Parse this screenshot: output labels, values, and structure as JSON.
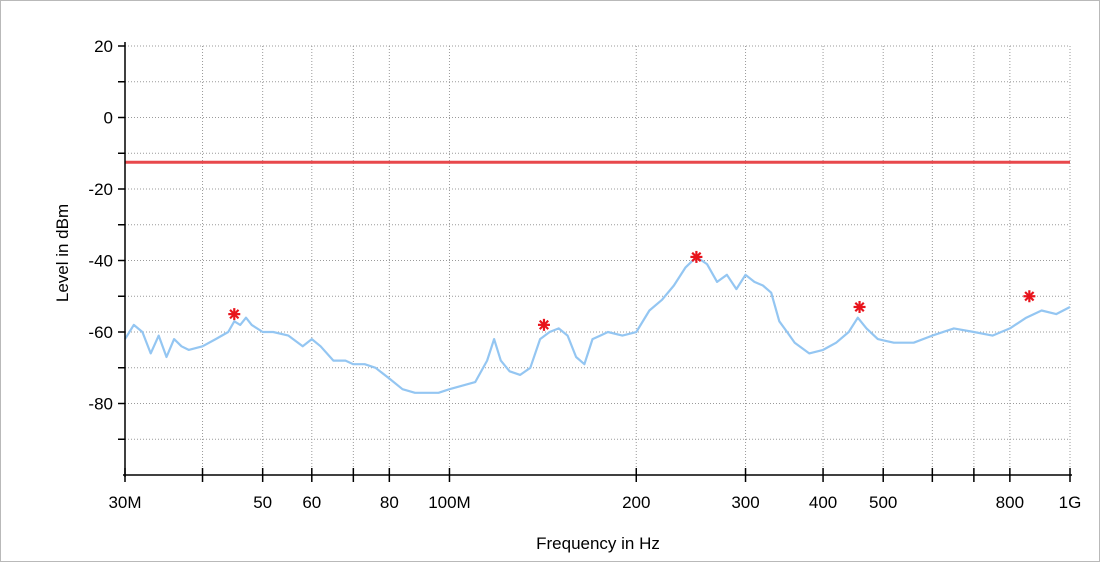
{
  "chart_data": {
    "type": "line",
    "xlabel": "Frequency in Hz",
    "ylabel": "Level in dBm",
    "x_scale": "log",
    "xlim": [
      30000000,
      1000000000
    ],
    "ylim": [
      -100,
      20
    ],
    "grid": true,
    "x_ticks": [
      {
        "value": 30000000,
        "label": "30M"
      },
      {
        "value": 40000000,
        "label": ""
      },
      {
        "value": 50000000,
        "label": "50"
      },
      {
        "value": 60000000,
        "label": "60"
      },
      {
        "value": 70000000,
        "label": ""
      },
      {
        "value": 80000000,
        "label": "80"
      },
      {
        "value": 100000000,
        "label": "100M"
      },
      {
        "value": 200000000,
        "label": "200"
      },
      {
        "value": 300000000,
        "label": "300"
      },
      {
        "value": 400000000,
        "label": "400"
      },
      {
        "value": 500000000,
        "label": "500"
      },
      {
        "value": 600000000,
        "label": ""
      },
      {
        "value": 700000000,
        "label": ""
      },
      {
        "value": 800000000,
        "label": "800"
      },
      {
        "value": 1000000000,
        "label": "1G"
      }
    ],
    "y_ticks": [
      {
        "value": 20,
        "label": "20"
      },
      {
        "value": 10,
        "label": ""
      },
      {
        "value": 0,
        "label": "0"
      },
      {
        "value": -10,
        "label": ""
      },
      {
        "value": -20,
        "label": "-20"
      },
      {
        "value": -30,
        "label": ""
      },
      {
        "value": -40,
        "label": "-40"
      },
      {
        "value": -50,
        "label": ""
      },
      {
        "value": -60,
        "label": "-60"
      },
      {
        "value": -70,
        "label": ""
      },
      {
        "value": -80,
        "label": "-80"
      },
      {
        "value": -90,
        "label": ""
      }
    ],
    "limit_line": {
      "value": -12.5,
      "color": "#e8484c"
    },
    "series": [
      {
        "color": "#94c6f2",
        "x": [
          30000000,
          31000000,
          32000000,
          33000000,
          34000000,
          35000000,
          36000000,
          37000000,
          38000000,
          40000000,
          42000000,
          44000000,
          45000000,
          46000000,
          47000000,
          48000000,
          50000000,
          52000000,
          55000000,
          58000000,
          60000000,
          62000000,
          65000000,
          68000000,
          70000000,
          73000000,
          76000000,
          80000000,
          84000000,
          88000000,
          92000000,
          96000000,
          100000000,
          105000000,
          110000000,
          115000000,
          118000000,
          121000000,
          125000000,
          130000000,
          135000000,
          140000000,
          145000000,
          150000000,
          155000000,
          160000000,
          165000000,
          170000000,
          175000000,
          180000000,
          190000000,
          200000000,
          210000000,
          220000000,
          230000000,
          240000000,
          250000000,
          260000000,
          270000000,
          280000000,
          290000000,
          300000000,
          310000000,
          320000000,
          330000000,
          340000000,
          350000000,
          360000000,
          380000000,
          400000000,
          420000000,
          440000000,
          455000000,
          470000000,
          490000000,
          520000000,
          560000000,
          600000000,
          650000000,
          700000000,
          750000000,
          800000000,
          850000000,
          900000000,
          950000000,
          1000000000
        ],
        "y": [
          -62,
          -58,
          -60,
          -66,
          -61,
          -67,
          -62,
          -64,
          -65,
          -64,
          -62,
          -60,
          -57,
          -58,
          -56,
          -58,
          -60,
          -60,
          -61,
          -64,
          -62,
          -64,
          -68,
          -68,
          -69,
          -69,
          -70,
          -73,
          -76,
          -77,
          -77,
          -77,
          -76,
          -75,
          -74,
          -68,
          -62,
          -68,
          -71,
          -72,
          -70,
          -62,
          -60,
          -59,
          -61,
          -67,
          -69,
          -62,
          -61,
          -60,
          -61,
          -60,
          -54,
          -51,
          -47,
          -42,
          -39,
          -41,
          -46,
          -44,
          -48,
          -44,
          -46,
          -47,
          -49,
          -57,
          -60,
          -63,
          -66,
          -65,
          -63,
          -60,
          -56,
          -59,
          -62,
          -63,
          -63,
          -61,
          -59,
          -60,
          -61,
          -59,
          -56,
          -54,
          -55,
          -53
        ]
      }
    ],
    "markers": [
      {
        "x": 45000000,
        "y": -55
      },
      {
        "x": 142000000,
        "y": -58
      },
      {
        "x": 250000000,
        "y": -39
      },
      {
        "x": 458000000,
        "y": -53
      },
      {
        "x": 860000000,
        "y": -50
      }
    ],
    "marker_color": "#e8141c"
  }
}
